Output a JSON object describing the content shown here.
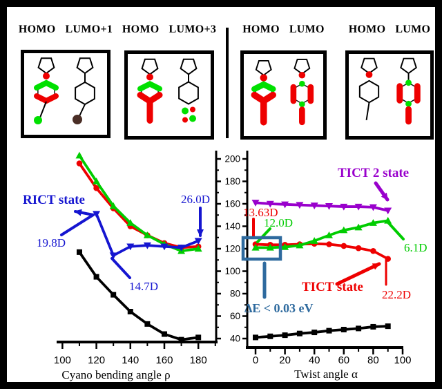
{
  "panel_labels": [
    {
      "left": "HOMO",
      "right": "LUMO+1"
    },
    {
      "left": "HOMO",
      "right": "LUMO+3"
    },
    {
      "left": "HOMO",
      "right": "LUMO"
    },
    {
      "left": "HOMO",
      "right": "LUMO"
    }
  ],
  "colors": {
    "green": "#00cc00",
    "red": "#ee0000",
    "blue": "#1515d0",
    "purple": "#9900cc",
    "black": "#000000",
    "steel_blue": "#2e6a9e"
  },
  "chart_data": [
    {
      "type": "line",
      "xlabel": "Cyano bending angle ρ",
      "xlim": [
        97,
        191
      ],
      "ylim": [
        35,
        206
      ],
      "x_ticks": [
        100,
        120,
        140,
        160,
        180
      ],
      "y_ticks": [
        40,
        60,
        80,
        100,
        120,
        140,
        160,
        180,
        200
      ],
      "grid": false,
      "series": [
        {
          "name": "black-ground-state",
          "color": "#000000",
          "marker": "square",
          "x": [
            110,
            120,
            130,
            140,
            150,
            160,
            170,
            180
          ],
          "values": [
            117,
            95,
            79,
            64,
            53,
            44,
            39,
            41
          ]
        },
        {
          "name": "red-excited-state",
          "color": "#ee0000",
          "marker": "circle",
          "x": [
            110,
            120,
            130,
            140,
            150,
            160,
            170,
            180
          ],
          "values": [
            196,
            174,
            156,
            140,
            132,
            125,
            121,
            122
          ]
        },
        {
          "name": "green-excited-state",
          "color": "#00cc00",
          "marker": "triangle-up",
          "x": [
            110,
            120,
            130,
            140,
            150,
            160,
            170,
            180
          ],
          "values": [
            203,
            180,
            158,
            143,
            132,
            124,
            118,
            120
          ]
        },
        {
          "name": "blue-RICT-state",
          "color": "#1515d0",
          "marker": "triangle-down",
          "x": [
            120,
            130,
            140,
            150,
            160,
            170,
            180
          ],
          "values": [
            151,
            114,
            122,
            123,
            122,
            121,
            127
          ]
        }
      ],
      "annotations": [
        {
          "id": "rict-state",
          "text": "RICT state",
          "color": "#1515d0"
        },
        {
          "id": "d19-8",
          "text": "19.8D",
          "color": "#1515d0"
        },
        {
          "id": "d14-7",
          "text": "14.7D",
          "color": "#1515d0"
        },
        {
          "id": "d26-0",
          "text": "26.0D",
          "color": "#1515d0"
        }
      ]
    },
    {
      "type": "line",
      "xlabel": "Twist angle α",
      "xlim": [
        -6,
        105
      ],
      "ylim": [
        35,
        206
      ],
      "x_ticks": [
        0,
        20,
        40,
        60,
        80,
        100
      ],
      "y_ticks": [
        40,
        60,
        80,
        100,
        120,
        140,
        160,
        180,
        200
      ],
      "grid": false,
      "series": [
        {
          "name": "black-ground-state",
          "color": "#000000",
          "marker": "square",
          "x": [
            0,
            10,
            20,
            30,
            40,
            50,
            60,
            70,
            80,
            90
          ],
          "values": [
            41,
            42,
            43,
            44.5,
            45.5,
            47,
            48,
            49,
            50.5,
            51
          ]
        },
        {
          "name": "red-TICT-state",
          "color": "#ee0000",
          "marker": "circle",
          "x": [
            0,
            10,
            20,
            30,
            40,
            50,
            60,
            70,
            80,
            90
          ],
          "values": [
            124,
            123.5,
            123.5,
            124,
            124.5,
            124,
            122.5,
            120.5,
            118,
            111
          ]
        },
        {
          "name": "green-state",
          "color": "#00cc00",
          "marker": "triangle-up",
          "x": [
            0,
            10,
            20,
            30,
            40,
            50,
            60,
            70,
            80,
            90
          ],
          "values": [
            121,
            121,
            121.5,
            123,
            127,
            132,
            136.5,
            139,
            143,
            145
          ]
        },
        {
          "name": "purple-TICT2-state",
          "color": "#9900cc",
          "marker": "triangle-down",
          "x": [
            0,
            10,
            20,
            30,
            40,
            50,
            60,
            70,
            80,
            90
          ],
          "values": [
            161,
            160,
            159.5,
            159,
            158.5,
            158,
            157.5,
            157.5,
            157,
            154
          ]
        }
      ],
      "annotations": [
        {
          "id": "tict2-state",
          "text": "TICT 2 state",
          "color": "#9900cc"
        },
        {
          "id": "d13-63",
          "text": "13.63D",
          "color": "#ee0000"
        },
        {
          "id": "d12-0",
          "text": "12.0D",
          "color": "#00cc00"
        },
        {
          "id": "delta-e",
          "text": "ΔE < 0.03 eV",
          "color": "#2e6a9e"
        },
        {
          "id": "tict-state",
          "text": "TICT state",
          "color": "#ee0000"
        },
        {
          "id": "d22-2",
          "text": "22.2D",
          "color": "#ee0000"
        },
        {
          "id": "d6-1",
          "text": "6.1D",
          "color": "#00cc00"
        }
      ]
    }
  ]
}
